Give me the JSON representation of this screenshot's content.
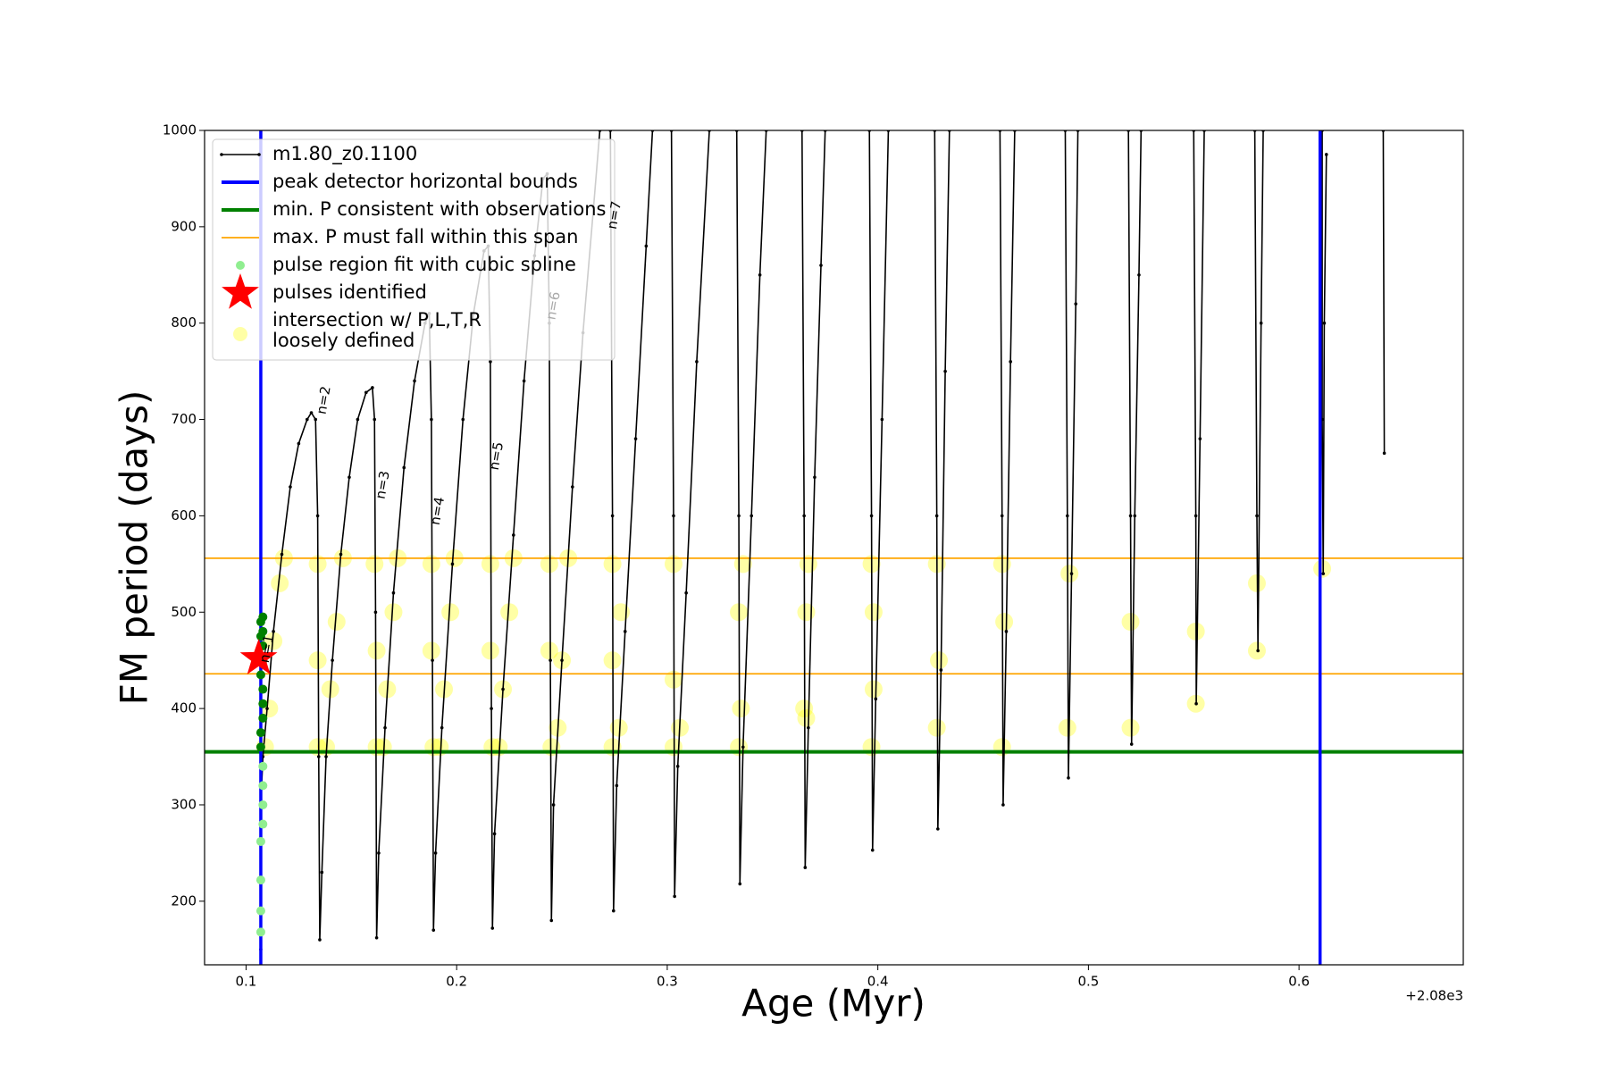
{
  "chart_data": {
    "type": "line",
    "xlabel": "Age (Myr)",
    "ylabel": "FM period (days)",
    "x_offset_label": "+2.08e3",
    "xlim": [
      0.0803,
      0.678
    ],
    "ylim": [
      134,
      1000
    ],
    "xticks": [
      0.1,
      0.2,
      0.3,
      0.4,
      0.5,
      0.6
    ],
    "yticks": [
      200,
      300,
      400,
      500,
      600,
      700,
      800,
      900,
      1000
    ],
    "legend": "upper left",
    "series": [
      {
        "name": "m1.80_z0.1100",
        "color": "#000000",
        "kind": "line",
        "x": [
          0.107,
          0.107,
          0.108,
          0.11,
          0.113,
          0.117,
          0.121,
          0.125,
          0.129,
          0.131,
          0.133,
          0.134,
          0.1345,
          0.135,
          0.136,
          0.138,
          0.141,
          0.145,
          0.149,
          0.153,
          0.157,
          0.16,
          0.161,
          0.1615,
          0.162,
          0.163,
          0.166,
          0.17,
          0.175,
          0.18,
          0.185,
          0.187,
          0.188,
          0.1885,
          0.189,
          0.19,
          0.193,
          0.198,
          0.203,
          0.208,
          0.213,
          0.215,
          0.216,
          0.2165,
          0.217,
          0.218,
          0.222,
          0.227,
          0.232,
          0.237,
          0.241,
          0.243,
          0.244,
          0.2445,
          0.245,
          0.246,
          0.25,
          0.255,
          0.26,
          0.265,
          0.268,
          null,
          0.273,
          0.274,
          0.2745,
          0.276,
          0.28,
          0.285,
          0.29,
          0.293,
          null,
          0.302,
          0.303,
          0.3035,
          0.305,
          0.309,
          0.314,
          0.32,
          null,
          0.333,
          0.334,
          0.3345,
          0.336,
          0.34,
          0.344,
          0.347,
          null,
          0.364,
          0.365,
          0.3655,
          0.367,
          0.37,
          0.373,
          0.375,
          null,
          0.396,
          0.397,
          0.3975,
          0.399,
          0.402,
          0.405,
          null,
          0.427,
          0.428,
          0.4285,
          0.43,
          0.432,
          0.434,
          null,
          0.458,
          0.459,
          0.4595,
          0.461,
          0.463,
          0.465,
          null,
          0.489,
          0.49,
          0.4905,
          0.492,
          0.494,
          0.495,
          null,
          0.519,
          0.52,
          0.5205,
          0.522,
          0.524,
          0.525,
          null,
          0.55,
          0.551,
          0.5512,
          0.553,
          0.555,
          null,
          0.579,
          0.58,
          0.5805,
          0.582,
          0.583,
          null,
          0.611,
          0.611,
          0.6115,
          0.612,
          0.613,
          null,
          0.64,
          0.6405
        ],
        "values": [
          150,
          300,
          350,
          400,
          480,
          560,
          630,
          675,
          700,
          707,
          700,
          600,
          350,
          160,
          230,
          350,
          450,
          560,
          640,
          700,
          728,
          733,
          700,
          500,
          162,
          250,
          380,
          520,
          650,
          740,
          800,
          810,
          700,
          450,
          170,
          250,
          380,
          550,
          700,
          810,
          875,
          880,
          760,
          400,
          172,
          270,
          420,
          580,
          740,
          870,
          950,
          955,
          800,
          450,
          180,
          300,
          450,
          630,
          790,
          920,
          1000,
          null,
          1000,
          600,
          190,
          320,
          480,
          680,
          880,
          1000,
          null,
          1000,
          600,
          205,
          340,
          520,
          760,
          1000,
          null,
          1000,
          600,
          218,
          360,
          600,
          850,
          1000,
          null,
          1000,
          600,
          235,
          380,
          640,
          860,
          1000,
          null,
          1000,
          600,
          253,
          410,
          700,
          1000,
          null,
          1000,
          600,
          275,
          440,
          750,
          1000,
          null,
          1000,
          600,
          300,
          480,
          760,
          1000,
          null,
          1000,
          600,
          328,
          540,
          820,
          1000,
          null,
          1000,
          600,
          363,
          600,
          850,
          1000,
          null,
          1000,
          600,
          405,
          680,
          1000,
          null,
          1000,
          600,
          460,
          800,
          1000,
          null,
          1000,
          700,
          540,
          800,
          975,
          null,
          1000,
          665
        ]
      },
      {
        "name": "peak detector horizontal bounds",
        "color": "#0000ff",
        "kind": "vline",
        "x": [
          0.107,
          0.61
        ]
      },
      {
        "name": "min. P consistent with observations",
        "color": "#008000",
        "kind": "hline",
        "values": [
          355
        ]
      },
      {
        "name": "max. P must fall within this span",
        "color": "#ffa500",
        "kind": "hline",
        "values": [
          436,
          556
        ]
      },
      {
        "name": "pulse region fit with cubic spline",
        "color": "#90ee90",
        "kind": "scatter",
        "x": [
          0.107,
          0.107,
          0.107,
          0.107,
          0.108,
          0.108,
          0.108,
          0.108
        ],
        "values": [
          168,
          190,
          222,
          262,
          280,
          300,
          320,
          340
        ]
      },
      {
        "color": "#008000",
        "kind": "scatter",
        "x": [
          0.107,
          0.107,
          0.108,
          0.108,
          0.108,
          0.107,
          0.108,
          0.108,
          0.107,
          0.108,
          0.107,
          0.108
        ],
        "values": [
          360,
          375,
          390,
          405,
          420,
          435,
          450,
          465,
          475,
          480,
          490,
          495
        ]
      },
      {
        "name": "pulses identified",
        "color": "#ff0000",
        "kind": "star",
        "x": [
          0.106
        ],
        "values": [
          452
        ]
      },
      {
        "name_lines": [
          "intersection w/ P,L,T,R",
          "loosely defined"
        ],
        "color": "#ffff00",
        "kind": "halo",
        "x": [
          0.109,
          0.111,
          0.113,
          0.116,
          0.118,
          0.134,
          0.134,
          0.134,
          0.138,
          0.14,
          0.143,
          0.146,
          0.162,
          0.162,
          0.161,
          0.165,
          0.167,
          0.17,
          0.172,
          0.189,
          0.188,
          0.188,
          0.192,
          0.194,
          0.197,
          0.199,
          0.217,
          0.216,
          0.216,
          0.22,
          0.222,
          0.225,
          0.227,
          0.245,
          0.244,
          0.244,
          0.248,
          0.25,
          0.253,
          0.274,
          0.274,
          0.274,
          0.277,
          0.278,
          0.303,
          0.303,
          0.303,
          0.306,
          0.334,
          0.334,
          0.335,
          0.336,
          0.365,
          0.366,
          0.366,
          0.367,
          0.397,
          0.398,
          0.398,
          0.397,
          0.428,
          0.429,
          0.428,
          0.459,
          0.46,
          0.459,
          0.49,
          0.491,
          0.52,
          0.52,
          0.551,
          0.551,
          0.58,
          0.58,
          0.611
        ],
        "values": [
          360,
          400,
          470,
          530,
          556,
          360,
          450,
          550,
          360,
          420,
          490,
          556,
          360,
          460,
          550,
          360,
          420,
          500,
          556,
          360,
          460,
          550,
          360,
          420,
          500,
          556,
          360,
          460,
          550,
          360,
          420,
          500,
          556,
          360,
          460,
          550,
          380,
          450,
          556,
          360,
          450,
          550,
          380,
          500,
          360,
          430,
          550,
          380,
          360,
          500,
          400,
          550,
          400,
          390,
          500,
          550,
          360,
          420,
          500,
          550,
          380,
          450,
          550,
          360,
          490,
          550,
          380,
          540,
          380,
          490,
          405,
          480,
          460,
          530,
          545
        ]
      }
    ],
    "annotations": [
      {
        "text": "n=1",
        "x": 0.11,
        "y": 462,
        "color": "#000000"
      },
      {
        "text": "n=2",
        "x": 0.137,
        "y": 720,
        "color": "#000000"
      },
      {
        "text": "n=3",
        "x": 0.165,
        "y": 632,
        "color": "#000000"
      },
      {
        "text": "n=4",
        "x": 0.191,
        "y": 605,
        "color": "#000000"
      },
      {
        "text": "n=5",
        "x": 0.219,
        "y": 662,
        "color": "#000000"
      },
      {
        "text": "n=6",
        "x": 0.246,
        "y": 818,
        "color": "#aaaaaa"
      },
      {
        "text": "n=7",
        "x": 0.275,
        "y": 912,
        "color": "#000000"
      }
    ]
  }
}
